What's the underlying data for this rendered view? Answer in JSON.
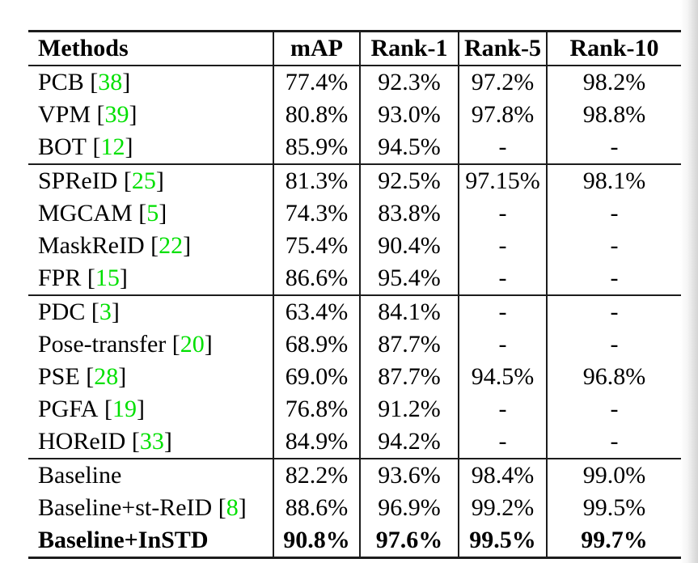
{
  "page": {
    "background_color": "#ffffff",
    "edge_shadow_color": "#d4d4d4"
  },
  "table": {
    "columns": [
      "Methods",
      "mAP",
      "Rank-1",
      "Rank-5",
      "Rank-10"
    ],
    "column_keys": [
      "map",
      "rank1",
      "rank5",
      "rank10"
    ],
    "citation_brackets": [
      "[",
      "]"
    ],
    "citation_color": "#00e000",
    "rule_color": "#1c1c1c",
    "groups": [
      [
        {
          "method": "PCB",
          "cite": "38",
          "values": [
            "77.4%",
            "92.3%",
            "97.2%",
            "98.2%"
          ]
        },
        {
          "method": "VPM",
          "cite": "39",
          "values": [
            "80.8%",
            "93.0%",
            "97.8%",
            "98.8%"
          ]
        },
        {
          "method": "BOT",
          "cite": "12",
          "values": [
            "85.9%",
            "94.5%",
            "-",
            "-"
          ]
        }
      ],
      [
        {
          "method": "SPReID",
          "cite": "25",
          "values": [
            "81.3%",
            "92.5%",
            "97.15%",
            "98.1%"
          ]
        },
        {
          "method": "MGCAM",
          "cite": "5",
          "values": [
            "74.3%",
            "83.8%",
            "-",
            "-"
          ]
        },
        {
          "method": "MaskReID",
          "cite": "22",
          "values": [
            "75.4%",
            "90.4%",
            "-",
            "-"
          ]
        },
        {
          "method": "FPR",
          "cite": "15",
          "values": [
            "86.6%",
            "95.4%",
            "-",
            "-"
          ]
        }
      ],
      [
        {
          "method": "PDC",
          "cite": "3",
          "values": [
            "63.4%",
            "84.1%",
            "-",
            "-"
          ]
        },
        {
          "method": "Pose-transfer",
          "cite": "20",
          "values": [
            "68.9%",
            "87.7%",
            "-",
            "-"
          ]
        },
        {
          "method": "PSE",
          "cite": "28",
          "values": [
            "69.0%",
            "87.7%",
            "94.5%",
            "96.8%"
          ]
        },
        {
          "method": "PGFA",
          "cite": "19",
          "values": [
            "76.8%",
            "91.2%",
            "-",
            "-"
          ]
        },
        {
          "method": "HOReID",
          "cite": "33",
          "values": [
            "84.9%",
            "94.2%",
            "-",
            "-"
          ]
        }
      ],
      [
        {
          "method": "Baseline",
          "cite": null,
          "values": [
            "82.2%",
            "93.6%",
            "98.4%",
            "99.0%"
          ]
        },
        {
          "method": "Baseline+st-ReID",
          "cite": "8",
          "values": [
            "88.6%",
            "96.9%",
            "99.2%",
            "99.5%"
          ]
        },
        {
          "method": "Baseline+InSTD",
          "cite": null,
          "bold": true,
          "values": [
            "90.8%",
            "97.6%",
            "99.5%",
            "99.7%"
          ]
        }
      ]
    ]
  }
}
